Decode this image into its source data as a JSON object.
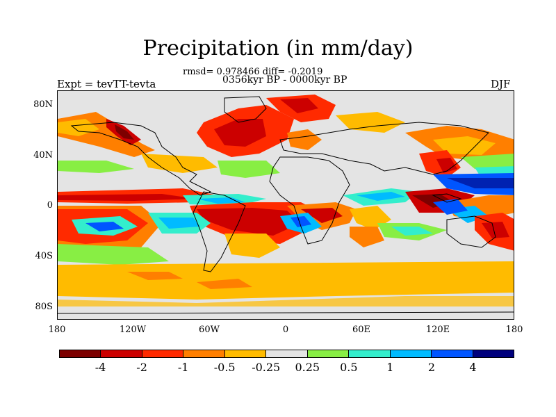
{
  "title": "Precipitation (in mm/day)",
  "stats": "rmsd= 0.978466 diff= -0.2019",
  "period": "0356kyr BP - 0000kyr BP",
  "expt": "Expt = tevTT-tevta",
  "season": "DJF",
  "y_ticks": [
    "80N",
    "40N",
    "0",
    "40S",
    "80S"
  ],
  "x_ticks": [
    "180",
    "120W",
    "60W",
    "0",
    "60E",
    "120E",
    "180"
  ],
  "colorbar": {
    "colors": [
      "#7d0000",
      "#cc0000",
      "#ff2a00",
      "#ff7f00",
      "#ffbb00",
      "#e4e4e4",
      "#88ee44",
      "#33eecc",
      "#00bbff",
      "#0055ff",
      "#00007d"
    ],
    "labels": [
      "-4",
      "-2",
      "-1",
      "-0.5",
      "-0.25",
      "0.25",
      "0.5",
      "1",
      "2",
      "4"
    ]
  }
}
